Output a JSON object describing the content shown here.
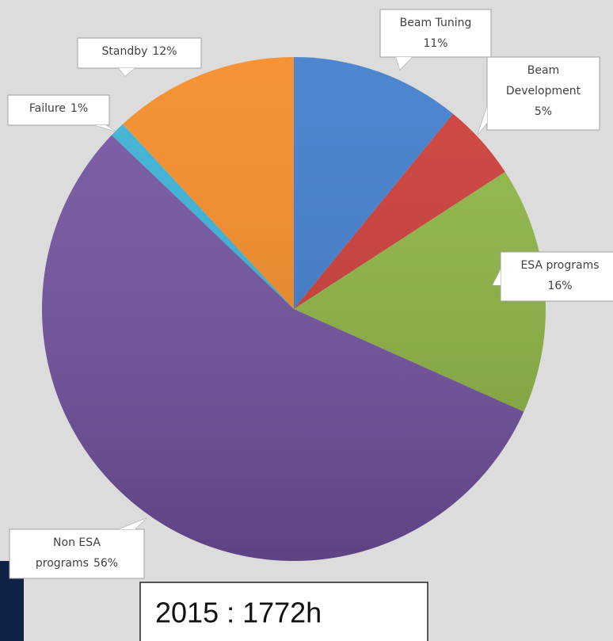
{
  "chart_data": {
    "type": "pie",
    "categories": [
      "Beam Tuning",
      "Beam Development",
      "ESA programs",
      "Non ESA programs",
      "Failure",
      "Standby"
    ],
    "values": [
      11,
      5,
      16,
      56,
      1,
      12
    ],
    "value_labels": [
      "11%",
      "5%",
      "16%",
      "56%",
      "1%",
      "12%"
    ],
    "colors": [
      "#3e7ccc",
      "#cc3a35",
      "#8db543",
      "#7252a0",
      "#38b1d6",
      "#f58a24"
    ],
    "annotation": "2015 : 1772h"
  }
}
